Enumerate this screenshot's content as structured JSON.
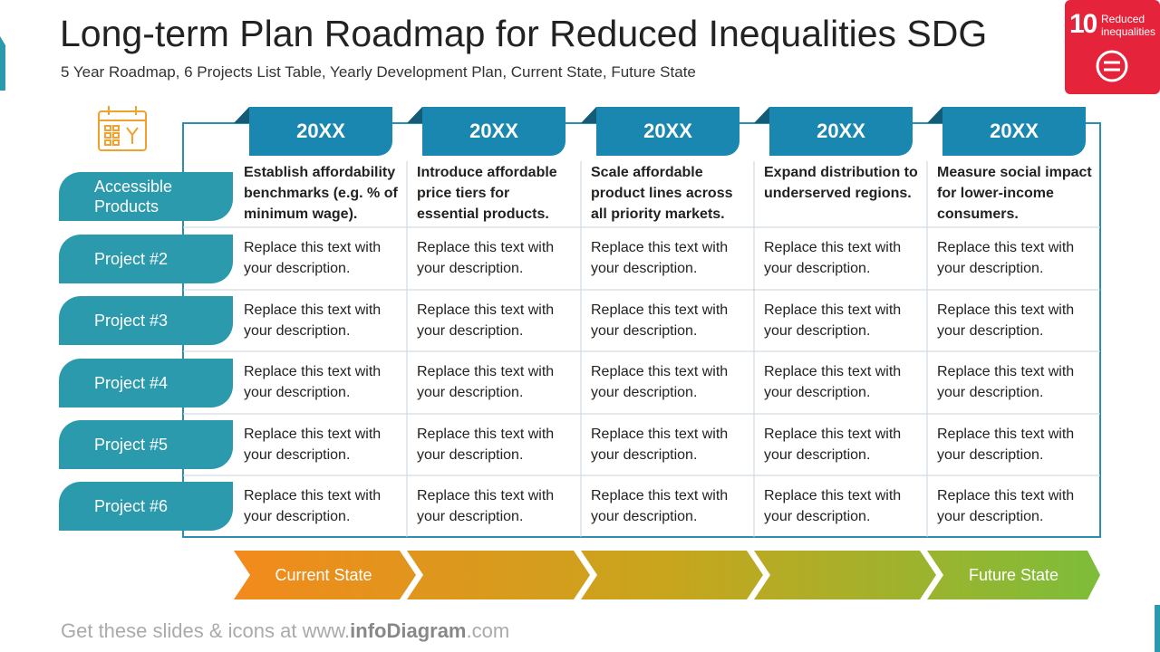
{
  "header": {
    "title": "Long-term Plan Roadmap for Reduced Inequalities SDG",
    "subtitle": "5 Year Roadmap, 6 Projects List Table, Yearly Development Plan, Current State, Future State"
  },
  "badge": {
    "number": "10",
    "label": "Reduced inequalities"
  },
  "table": {
    "years": [
      "20XX",
      "20XX",
      "20XX",
      "20XX",
      "20XX"
    ],
    "rows": [
      {
        "label": "Accessible Products",
        "cells": [
          "Establish affordability benchmarks (e.g. % of minimum wage).",
          "Introduce affordable price tiers for essential products.",
          "Scale affordable product lines across all priority markets.",
          "Expand distribution to underserved regions.",
          "Measure social impact for lower-income consumers."
        ]
      },
      {
        "label": "Project #2",
        "cells": [
          "Replace this text with your description.",
          "Replace this text with your description.",
          "Replace this text with your description.",
          "Replace this text with your description.",
          "Replace this text with your description."
        ]
      },
      {
        "label": "Project #3",
        "cells": [
          "Replace this text with your description.",
          "Replace this text with your description.",
          "Replace this text with your description.",
          "Replace this text with your description.",
          "Replace this text with your description."
        ]
      },
      {
        "label": "Project #4",
        "cells": [
          "Replace this text with your description.",
          "Replace this text with your description.",
          "Replace this text with your description.",
          "Replace this text with your description.",
          "Replace this text with your description."
        ]
      },
      {
        "label": "Project #5",
        "cells": [
          "Replace this text with your description.",
          "Replace this text with your description.",
          "Replace this text with your description.",
          "Replace this text with your description.",
          "Replace this text with your description."
        ]
      },
      {
        "label": "Project #6",
        "cells": [
          "Replace this text with your description.",
          "Replace this text with your description.",
          "Replace this text with your description.",
          "Replace this text with your description.",
          "Replace this text with your description."
        ]
      }
    ]
  },
  "timeline": {
    "start": "Current State",
    "end": "Future State"
  },
  "footer": {
    "prefix": "Get these slides & icons at www.",
    "brand": "infoDiagram",
    "suffix": ".com"
  }
}
